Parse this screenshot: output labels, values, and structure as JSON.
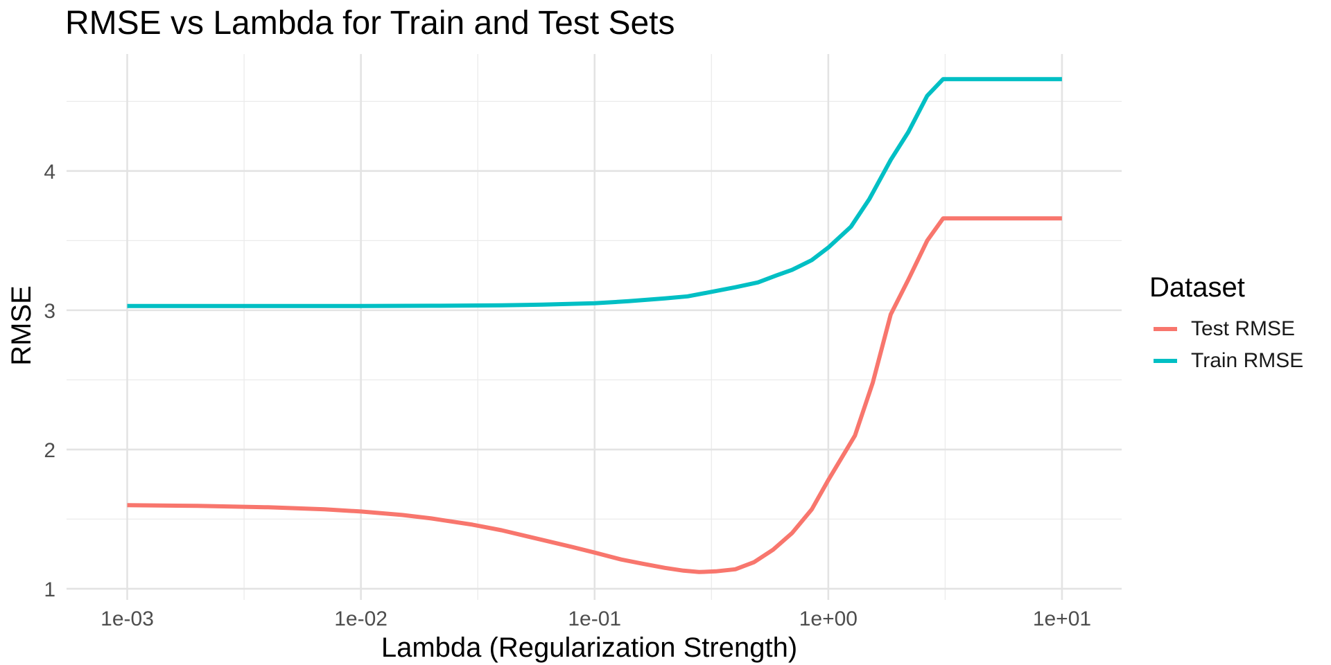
{
  "chart_data": {
    "type": "line",
    "title": "RMSE vs Lambda for Train and Test Sets",
    "xlabel": "Lambda (Regularization Strength)",
    "ylabel": "RMSE",
    "x_scale": "log10",
    "xlim": [
      0.00055,
      18
    ],
    "ylim": [
      0.92,
      4.84
    ],
    "x_ticks": [
      0.001,
      0.01,
      0.1,
      1,
      10
    ],
    "x_tick_labels": [
      "1e-03",
      "1e-02",
      "1e-01",
      "1e+00",
      "1e+01"
    ],
    "y_ticks": [
      1,
      2,
      3,
      4
    ],
    "y_tick_labels": [
      "1",
      "2",
      "3",
      "4"
    ],
    "grid": true,
    "legend_title": "Dataset",
    "legend_position": "right",
    "series": [
      {
        "name": "Test RMSE",
        "color": "#F8766D",
        "points": [
          [
            0.001,
            1.6
          ],
          [
            0.002,
            1.595
          ],
          [
            0.004,
            1.585
          ],
          [
            0.007,
            1.57
          ],
          [
            0.01,
            1.555
          ],
          [
            0.015,
            1.53
          ],
          [
            0.02,
            1.505
          ],
          [
            0.03,
            1.46
          ],
          [
            0.04,
            1.42
          ],
          [
            0.06,
            1.35
          ],
          [
            0.08,
            1.3
          ],
          [
            0.1,
            1.26
          ],
          [
            0.13,
            1.21
          ],
          [
            0.16,
            1.18
          ],
          [
            0.2,
            1.15
          ],
          [
            0.24,
            1.13
          ],
          [
            0.28,
            1.12
          ],
          [
            0.33,
            1.125
          ],
          [
            0.4,
            1.14
          ],
          [
            0.48,
            1.19
          ],
          [
            0.58,
            1.28
          ],
          [
            0.7,
            1.4
          ],
          [
            0.85,
            1.57
          ],
          [
            1.0,
            1.78
          ],
          [
            1.3,
            2.1
          ],
          [
            1.55,
            2.48
          ],
          [
            1.85,
            2.97
          ],
          [
            2.2,
            3.22
          ],
          [
            2.65,
            3.5
          ],
          [
            3.1,
            3.66
          ],
          [
            5.0,
            3.66
          ],
          [
            10.0,
            3.66
          ]
        ]
      },
      {
        "name": "Train RMSE",
        "color": "#00BFC4",
        "points": [
          [
            0.001,
            3.03
          ],
          [
            0.005,
            3.03
          ],
          [
            0.01,
            3.03
          ],
          [
            0.02,
            3.032
          ],
          [
            0.04,
            3.035
          ],
          [
            0.06,
            3.04
          ],
          [
            0.1,
            3.05
          ],
          [
            0.14,
            3.065
          ],
          [
            0.2,
            3.085
          ],
          [
            0.25,
            3.1
          ],
          [
            0.3,
            3.125
          ],
          [
            0.4,
            3.165
          ],
          [
            0.5,
            3.2
          ],
          [
            0.6,
            3.25
          ],
          [
            0.7,
            3.29
          ],
          [
            0.85,
            3.36
          ],
          [
            1.0,
            3.45
          ],
          [
            1.25,
            3.6
          ],
          [
            1.5,
            3.8
          ],
          [
            1.85,
            4.08
          ],
          [
            2.2,
            4.28
          ],
          [
            2.65,
            4.54
          ],
          [
            3.1,
            4.66
          ],
          [
            5.0,
            4.66
          ],
          [
            10.0,
            4.66
          ]
        ]
      }
    ]
  }
}
